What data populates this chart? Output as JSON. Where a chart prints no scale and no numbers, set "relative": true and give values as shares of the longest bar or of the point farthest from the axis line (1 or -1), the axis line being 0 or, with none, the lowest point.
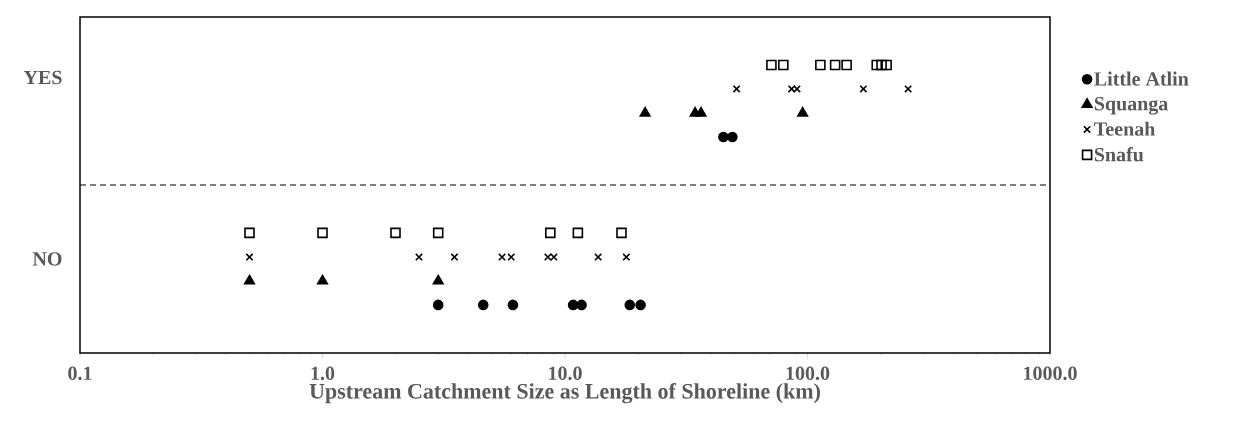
{
  "chart_data": {
    "type": "scatter",
    "xlabel": "Upstream Catchment Size as Length of Shoreline (km)",
    "log": "x",
    "xlim": [
      0.1,
      1000
    ],
    "relative": true,
    "annotations": [
      "YES",
      "NO"
    ],
    "xticks": [
      0.1,
      {
        "value": 1,
        "label": "1.0"
      },
      {
        "value": 10,
        "label": "10.0"
      },
      {
        "value": 100,
        "label": "100.0"
      },
      {
        "value": 1000,
        "label": "1000.0"
      }
    ],
    "grid": false,
    "legend": "right",
    "ref_lines": [
      {
        "axis": "y",
        "value": 0.583,
        "line_style": "dashed",
        "color": "#000000"
      }
    ],
    "series": [
      {
        "name": "Little Atlin",
        "color": "#000000",
        "marker": "circle",
        "x": [
          3.0,
          4.6,
          6.1,
          10.8,
          11.7,
          18.5,
          20.5,
          45,
          49
        ],
        "values": [
          0.167,
          0.167,
          0.167,
          0.167,
          0.167,
          0.167,
          0.167,
          0.75,
          0.75
        ]
      },
      {
        "name": "Squanga",
        "color": "#000000",
        "marker": "triangle",
        "x": [
          0.5,
          1.0,
          3.0,
          21.4,
          34.4,
          36.4,
          95.5
        ],
        "values": [
          0.25,
          0.25,
          0.25,
          0.833,
          0.833,
          0.833,
          0.833
        ]
      },
      {
        "name": "Teenah",
        "color": "#000000",
        "marker": "cross",
        "x": [
          0.5,
          2.5,
          3.5,
          5.5,
          6.0,
          8.5,
          9.0,
          13.7,
          17.9,
          51,
          86,
          90.5,
          170,
          260
        ],
        "values": [
          0.333,
          0.333,
          0.333,
          0.333,
          0.333,
          0.333,
          0.333,
          0.333,
          0.333,
          0.917,
          0.917,
          0.917,
          0.917,
          0.917
        ]
      },
      {
        "name": "Snafu",
        "color": "#000000",
        "marker": "square",
        "x": [
          0.5,
          1.0,
          2.0,
          3.0,
          8.7,
          11.3,
          17.1,
          71,
          79.5,
          113,
          130,
          145,
          193,
          202,
          212
        ],
        "values": [
          0.417,
          0.417,
          0.417,
          0.417,
          0.417,
          0.417,
          0.417,
          1,
          1,
          1,
          1,
          1,
          1,
          1,
          1
        ]
      }
    ]
  }
}
